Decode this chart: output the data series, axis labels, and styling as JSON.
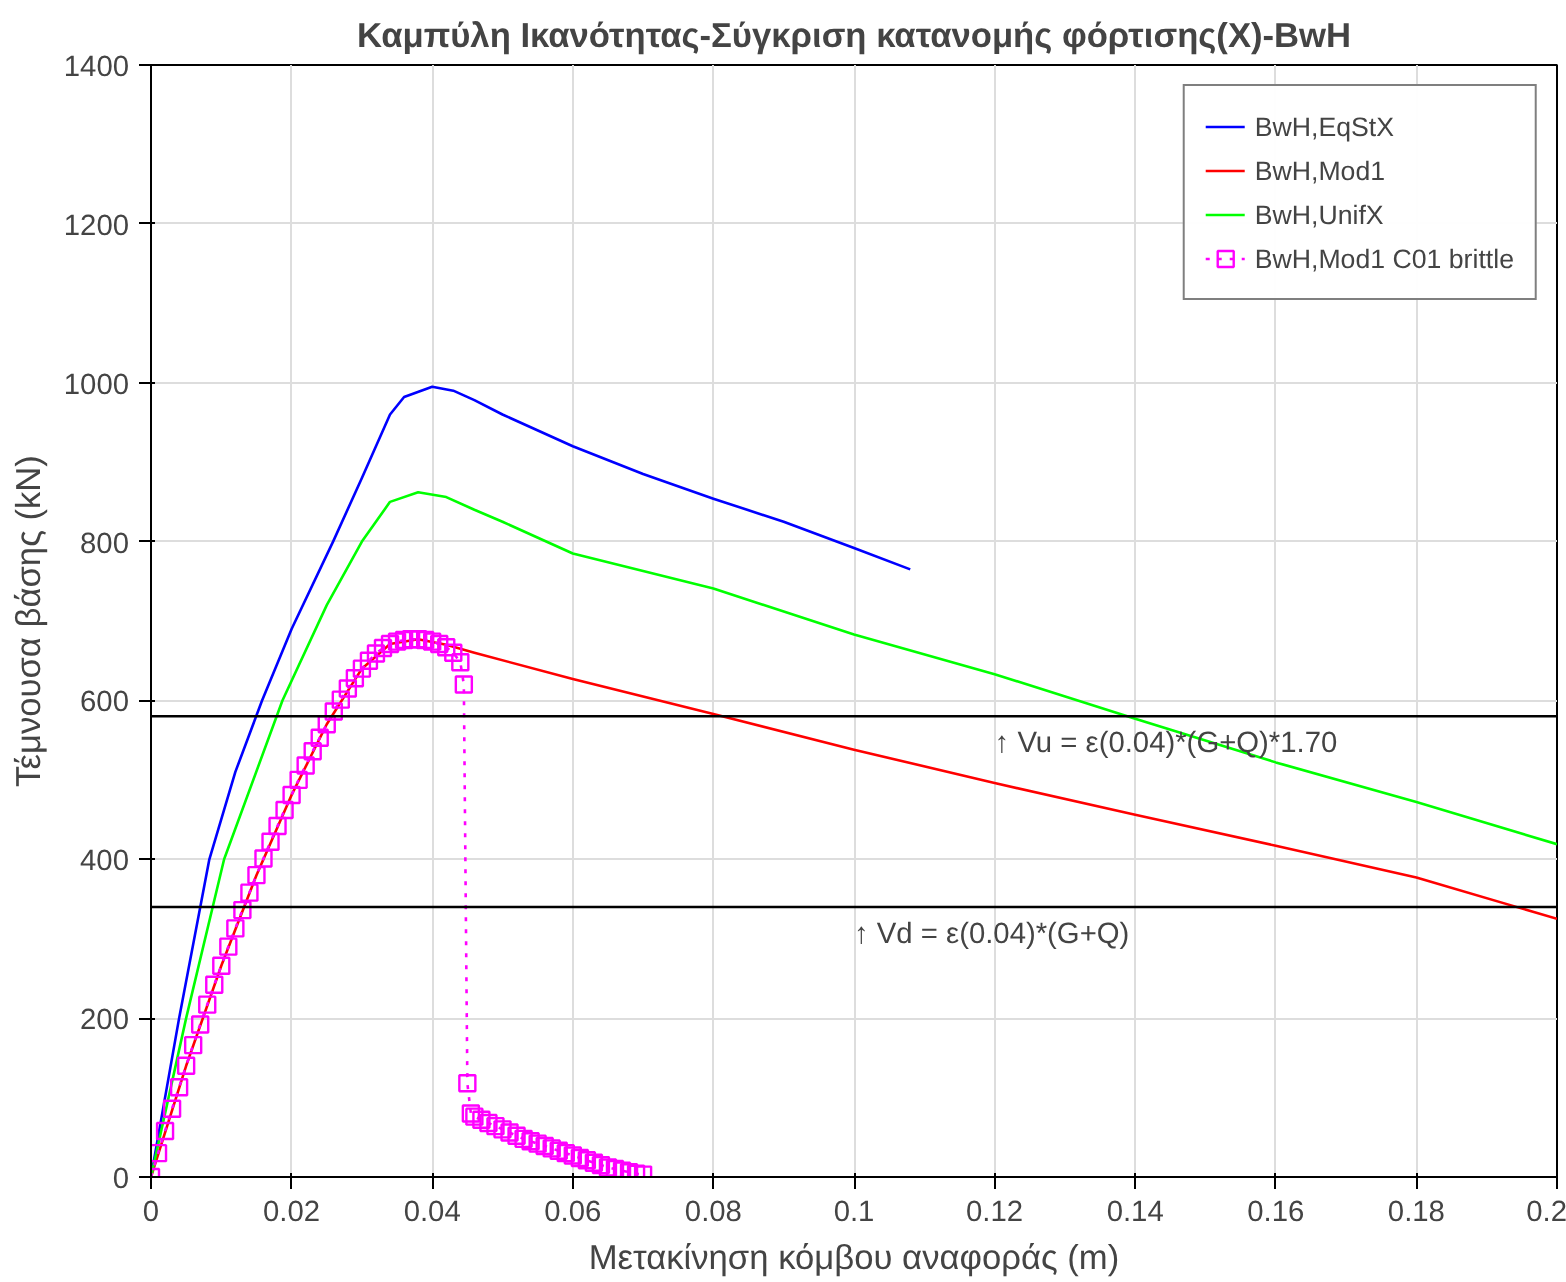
{
  "chart_data": {
    "type": "line",
    "title": "Καμπύλη Ικανότητας-Σύγκριση κατανομής φόρτισης(X)-BwH",
    "xlabel": "Μετακίνηση κόμβου αναφοράς (m)",
    "ylabel": "Τέμνουσα βάσης (kN)",
    "xlim": [
      0,
      0.2
    ],
    "ylim": [
      0,
      1400
    ],
    "xticks": [
      0,
      0.02,
      0.04,
      0.06,
      0.08,
      0.1,
      0.12,
      0.14,
      0.16,
      0.18,
      0.2
    ],
    "yticks": [
      0,
      200,
      400,
      600,
      800,
      1000,
      1200,
      1400
    ],
    "grid": true,
    "legend": "top right",
    "series": [
      {
        "name": "BwH,EqStX",
        "color": "#0000ff",
        "marker": "none",
        "line_style": "solid",
        "x": [
          0,
          0.004,
          0.0083,
          0.012,
          0.0158,
          0.02,
          0.0259,
          0.03,
          0.034,
          0.036,
          0.04,
          0.043,
          0.046,
          0.05,
          0.06,
          0.07,
          0.08,
          0.09,
          0.1,
          0.108
        ],
        "values": [
          0,
          200,
          400,
          510,
          600,
          690,
          800,
          880,
          960,
          982,
          995,
          990,
          978,
          960,
          920,
          885,
          854,
          825,
          792,
          765
        ]
      },
      {
        "name": "BwH,Mod1",
        "color": "#ff0000",
        "marker": "none",
        "line_style": "solid",
        "x": [
          0,
          0.005,
          0.01,
          0.015,
          0.02,
          0.025,
          0.03,
          0.034,
          0.038,
          0.042,
          0.046,
          0.06,
          0.08,
          0.1,
          0.12,
          0.14,
          0.16,
          0.18,
          0.2
        ],
        "values": [
          0,
          140,
          266,
          380,
          481,
          570,
          640,
          671,
          677,
          670,
          660,
          627,
          583,
          538,
          496,
          456,
          417,
          377,
          325
        ]
      },
      {
        "name": "BwH,UnifX",
        "color": "#00ff00",
        "marker": "none",
        "line_style": "solid",
        "x": [
          0,
          0.005,
          0.0104,
          0.0187,
          0.025,
          0.03,
          0.034,
          0.038,
          0.042,
          0.046,
          0.05,
          0.06,
          0.08,
          0.1,
          0.12,
          0.14,
          0.16,
          0.18,
          0.2
        ],
        "values": [
          0,
          200,
          400,
          600,
          720,
          800,
          850,
          862,
          856,
          840,
          825,
          785,
          741,
          683,
          633,
          577,
          522,
          472,
          419
        ]
      },
      {
        "name": "BwH,Mod1 C01 brittle",
        "color": "#ff00ff",
        "marker": "square",
        "line_style": "dotted",
        "x": [
          0,
          0.001,
          0.002,
          0.003,
          0.004,
          0.005,
          0.006,
          0.007,
          0.008,
          0.009,
          0.01,
          0.011,
          0.012,
          0.013,
          0.014,
          0.015,
          0.016,
          0.017,
          0.018,
          0.019,
          0.02,
          0.021,
          0.022,
          0.023,
          0.024,
          0.025,
          0.026,
          0.027,
          0.028,
          0.029,
          0.03,
          0.031,
          0.032,
          0.033,
          0.034,
          0.035,
          0.036,
          0.037,
          0.038,
          0.039,
          0.04,
          0.041,
          0.042,
          0.043,
          0.044,
          0.0445,
          0.045,
          0.0455,
          0.046,
          0.047,
          0.048,
          0.049,
          0.05,
          0.051,
          0.052,
          0.053,
          0.054,
          0.055,
          0.056,
          0.057,
          0.058,
          0.059,
          0.06,
          0.061,
          0.062,
          0.063,
          0.064,
          0.065,
          0.066,
          0.067,
          0.068,
          0.069,
          0.07
        ],
        "values": [
          0,
          30,
          58,
          86,
          113,
          140,
          166,
          192,
          217,
          242,
          266,
          290,
          313,
          336,
          358,
          380,
          401,
          422,
          442,
          462,
          481,
          500,
          518,
          536,
          553,
          570,
          586,
          601,
          615,
          628,
          640,
          650,
          659,
          666,
          671,
          674,
          676,
          677,
          677,
          676,
          674,
          671,
          667,
          660,
          648,
          620,
          118,
          80,
          76,
          72,
          68,
          64,
          60,
          56,
          52,
          48,
          45,
          42,
          39,
          36,
          33,
          30,
          27,
          24,
          21,
          18,
          15,
          12,
          10,
          8,
          6,
          4,
          3
        ]
      }
    ],
    "ref_lines": [
      {
        "axis": "y",
        "value": 580,
        "label": "↑ Vu = ε(0.04)*(G+Q)*1.70",
        "color": "#000000"
      },
      {
        "axis": "y",
        "value": 340,
        "label": "↑ Vd = ε(0.04)*(G+Q)",
        "color": "#000000"
      }
    ]
  }
}
